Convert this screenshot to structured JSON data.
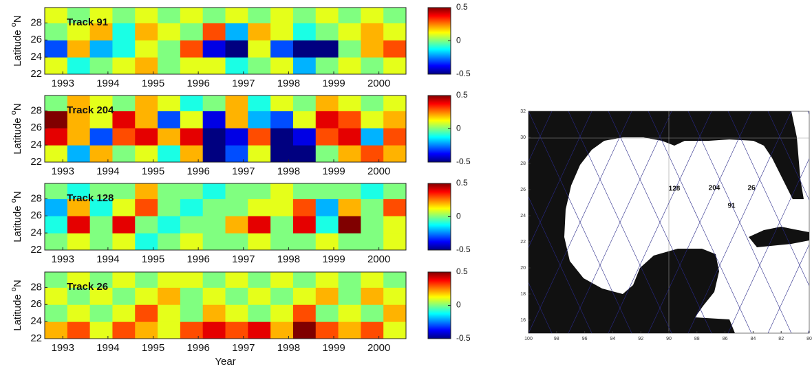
{
  "chart_data": [
    {
      "type": "heatmap",
      "annotation": "Track 91",
      "ylabel": "Latitude ",
      "ylabel_sup": "o",
      "ylabel_tail": "N",
      "xlim": [
        1992.6,
        2000.6
      ],
      "xticks": [
        1993,
        1994,
        1995,
        1996,
        1997,
        1998,
        1999,
        2000
      ],
      "ylim": [
        22,
        29.8
      ],
      "yticks": [
        22,
        24,
        26,
        28
      ],
      "xbins": [
        1992.6,
        1993.1,
        1993.6,
        1994.1,
        1994.6,
        1995.1,
        1995.6,
        1996.1,
        1996.6,
        1997.1,
        1997.6,
        1998.1,
        1998.6,
        1999.1,
        1999.6,
        2000.1,
        2000.6
      ],
      "ybins": [
        22,
        24,
        26,
        28,
        29.8
      ],
      "z": [
        [
          0.1,
          -0.1,
          0,
          0.1,
          0.2,
          0,
          0.1,
          0.1,
          -0.1,
          0,
          0.1,
          -0.2,
          0,
          0.1,
          0,
          0.1
        ],
        [
          -0.3,
          0.2,
          -0.2,
          -0.1,
          0.1,
          0,
          0.3,
          -0.4,
          -0.5,
          0.1,
          -0.3,
          -0.5,
          -0.5,
          0,
          0.2,
          0.3
        ],
        [
          0,
          0.1,
          0.2,
          -0.1,
          0.2,
          0.1,
          0,
          0.3,
          -0.2,
          0.2,
          0.1,
          -0.1,
          0,
          0.1,
          0.2,
          0.1
        ],
        [
          0.1,
          0,
          0.1,
          0,
          0.1,
          0,
          0.1,
          0,
          0.1,
          0,
          0.1,
          0,
          0.1,
          0,
          0.1,
          0
        ]
      ],
      "clim": [
        -0.5,
        0.5
      ],
      "cticks": [
        0.5,
        0,
        -0.5
      ]
    },
    {
      "type": "heatmap",
      "annotation": "Track 204",
      "ylabel": "Latitude ",
      "ylabel_sup": "o",
      "ylabel_tail": "N",
      "xlim": [
        1992.6,
        2000.6
      ],
      "xticks": [
        1993,
        1994,
        1995,
        1996,
        1997,
        1998,
        1999,
        2000
      ],
      "ylim": [
        22,
        29.8
      ],
      "yticks": [
        22,
        24,
        26,
        28
      ],
      "xbins": [
        1992.6,
        1993.1,
        1993.6,
        1994.1,
        1994.6,
        1995.1,
        1995.6,
        1996.1,
        1996.6,
        1997.1,
        1997.6,
        1998.1,
        1998.6,
        1999.1,
        1999.6,
        2000.1,
        2000.6
      ],
      "ybins": [
        22,
        24,
        26,
        28,
        29.8
      ],
      "z": [
        [
          0.1,
          -0.2,
          0.2,
          0,
          0.1,
          -0.1,
          0.2,
          -0.5,
          -0.3,
          0.1,
          -0.5,
          -0.5,
          0,
          0.2,
          0.3,
          0.2
        ],
        [
          0.4,
          0.2,
          -0.3,
          0.3,
          0.4,
          0.2,
          0.4,
          -0.5,
          -0.4,
          0.3,
          -0.5,
          -0.4,
          0.3,
          0.4,
          -0.2,
          0.3
        ],
        [
          0.5,
          0.2,
          0.1,
          0.4,
          0.2,
          -0.3,
          0.1,
          -0.4,
          0.2,
          -0.2,
          -0.3,
          0.1,
          0.4,
          0.3,
          0.1,
          0.2
        ],
        [
          0,
          0.2,
          0.1,
          0,
          0.2,
          0.1,
          -0.1,
          0,
          0.2,
          -0.1,
          0.1,
          0,
          0.2,
          0.1,
          0,
          0.1
        ]
      ],
      "clim": [
        -0.5,
        0.5
      ],
      "cticks": [
        0.5,
        0,
        -0.5
      ]
    },
    {
      "type": "heatmap",
      "annotation": "Track 128",
      "ylabel": "Latitude ",
      "ylabel_sup": "o",
      "ylabel_tail": "N",
      "xlim": [
        1992.6,
        2000.6
      ],
      "xticks": [
        1993,
        1994,
        1995,
        1996,
        1997,
        1998,
        1999,
        2000
      ],
      "ylim": [
        22,
        29.8
      ],
      "yticks": [
        22,
        24,
        26,
        28
      ],
      "xbins": [
        1992.6,
        1993.1,
        1993.6,
        1994.1,
        1994.6,
        1995.1,
        1995.6,
        1996.1,
        1996.6,
        1997.1,
        1997.6,
        1998.1,
        1998.6,
        1999.1,
        1999.6,
        2000.1,
        2000.6
      ],
      "ybins": [
        22,
        24,
        26,
        28,
        29.8
      ],
      "z": [
        [
          0,
          0.1,
          0,
          0.1,
          -0.1,
          0,
          0.1,
          0,
          0,
          0.1,
          0,
          0,
          0.1,
          0,
          0,
          0.1
        ],
        [
          -0.1,
          0.4,
          0,
          0.4,
          0,
          -0.1,
          0,
          0,
          0.2,
          0.4,
          0,
          0.4,
          -0.1,
          0.5,
          0,
          0.1
        ],
        [
          -0.2,
          0.2,
          -0.1,
          0.1,
          0.3,
          0,
          -0.1,
          0,
          0,
          0.1,
          0.1,
          0.3,
          -0.2,
          0.2,
          0,
          0.3
        ],
        [
          0,
          -0.1,
          0,
          0,
          0.2,
          0,
          0,
          -0.1,
          0,
          0,
          0.1,
          0,
          0,
          0,
          -0.1,
          0
        ]
      ],
      "clim": [
        -0.5,
        0.5
      ],
      "cticks": [
        0.5,
        0,
        -0.5
      ]
    },
    {
      "type": "heatmap",
      "annotation": "Track 26",
      "ylabel": "Latitude ",
      "ylabel_sup": "o",
      "ylabel_tail": "N",
      "xlabel": "Year",
      "xlim": [
        1992.6,
        2000.6
      ],
      "xticks": [
        1993,
        1994,
        1995,
        1996,
        1997,
        1998,
        1999,
        2000
      ],
      "ylim": [
        22,
        29.8
      ],
      "yticks": [
        22,
        24,
        26,
        28
      ],
      "xbins": [
        1992.6,
        1993.1,
        1993.6,
        1994.1,
        1994.6,
        1995.1,
        1995.6,
        1996.1,
        1996.6,
        1997.1,
        1997.6,
        1998.1,
        1998.6,
        1999.1,
        1999.6,
        2000.1,
        2000.6
      ],
      "ybins": [
        22,
        24,
        26,
        28,
        29.8
      ],
      "z": [
        [
          0.2,
          0.3,
          0.1,
          0.3,
          0.2,
          0.1,
          0.3,
          0.4,
          0.3,
          0.4,
          0.2,
          0.5,
          0.3,
          0.2,
          0.3,
          0.1
        ],
        [
          0,
          0.1,
          0,
          0.1,
          0.3,
          0.1,
          0,
          0.2,
          0.1,
          0,
          0.1,
          0.3,
          0,
          0.1,
          0,
          0.2
        ],
        [
          0.1,
          0,
          0.1,
          0,
          0.1,
          0.2,
          0,
          0.1,
          0,
          0.1,
          0,
          0.1,
          0.2,
          0,
          0.2,
          0.1
        ],
        [
          0,
          0.1,
          0,
          0.1,
          0,
          0.1,
          0.1,
          0,
          0.1,
          0,
          0.1,
          0,
          0.1,
          0,
          0.1,
          0
        ]
      ],
      "clim": [
        -0.5,
        0.5
      ],
      "cticks": [
        0.5,
        0,
        -0.5
      ]
    }
  ],
  "map": {
    "xlim": [
      100,
      80
    ],
    "ylim": [
      15,
      32
    ],
    "xticks": [
      100,
      98,
      96,
      94,
      92,
      90,
      88,
      86,
      84,
      82,
      80
    ],
    "yticks": [
      16,
      18,
      20,
      22,
      24,
      26,
      28,
      30,
      32
    ],
    "track_labels": [
      "128",
      "204",
      "26",
      "91"
    ]
  }
}
